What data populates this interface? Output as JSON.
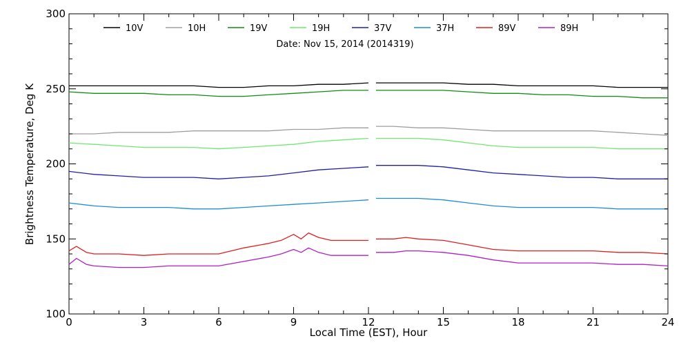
{
  "chart_data": {
    "type": "line",
    "title": "",
    "subtitle": "Date: Nov 15, 2014 (2014319)",
    "xlabel": "Local Time (EST), Hour",
    "ylabel": "Brightness Temperature, Deg K",
    "xlim": [
      0,
      24
    ],
    "ylim": [
      100,
      300
    ],
    "xticks": [
      "0",
      "3",
      "6",
      "9",
      "12",
      "15",
      "18",
      "21",
      "24"
    ],
    "yticks": [
      "100",
      "150",
      "200",
      "250",
      "300"
    ],
    "x_gap": [
      12,
      12.3
    ],
    "grid": false,
    "legend_position": "top",
    "series": [
      {
        "name": "10V",
        "color": "#000000",
        "x": [
          0,
          1,
          2,
          3,
          4,
          5,
          6,
          7,
          8,
          9,
          10,
          11,
          12,
          12.3,
          13,
          14,
          15,
          16,
          17,
          18,
          19,
          20,
          21,
          22,
          23,
          24
        ],
        "y": [
          252,
          252,
          252,
          252,
          252,
          252,
          251,
          251,
          252,
          252,
          253,
          253,
          254,
          254,
          254,
          254,
          254,
          253,
          253,
          252,
          252,
          252,
          252,
          251,
          251,
          251
        ]
      },
      {
        "name": "10H",
        "color": "#9e9e9e",
        "x": [
          0,
          1,
          2,
          3,
          4,
          5,
          6,
          7,
          8,
          9,
          10,
          11,
          12,
          12.3,
          13,
          14,
          15,
          16,
          17,
          18,
          19,
          20,
          21,
          22,
          23,
          24
        ],
        "y": [
          220,
          220,
          221,
          221,
          221,
          222,
          222,
          222,
          222,
          223,
          223,
          224,
          224,
          225,
          225,
          224,
          224,
          223,
          222,
          222,
          222,
          222,
          222,
          221,
          220,
          219
        ]
      },
      {
        "name": "19V",
        "color": "#108c10",
        "x": [
          0,
          1,
          2,
          3,
          4,
          5,
          6,
          7,
          8,
          9,
          10,
          11,
          12,
          12.3,
          13,
          14,
          15,
          16,
          17,
          18,
          19,
          20,
          21,
          22,
          23,
          24
        ],
        "y": [
          248,
          247,
          247,
          247,
          246,
          246,
          245,
          245,
          246,
          247,
          248,
          249,
          249,
          249,
          249,
          249,
          249,
          248,
          247,
          247,
          246,
          246,
          245,
          245,
          244,
          244
        ]
      },
      {
        "name": "19H",
        "color": "#6fe86f",
        "x": [
          0,
          1,
          2,
          3,
          4,
          5,
          6,
          7,
          8,
          9,
          10,
          11,
          12,
          12.3,
          13,
          14,
          15,
          16,
          17,
          18,
          19,
          20,
          21,
          22,
          23,
          24
        ],
        "y": [
          214,
          213,
          212,
          211,
          211,
          211,
          210,
          211,
          212,
          213,
          215,
          216,
          217,
          217,
          217,
          217,
          216,
          214,
          212,
          211,
          211,
          211,
          211,
          210,
          210,
          210
        ]
      },
      {
        "name": "37V",
        "color": "#1e1ea8",
        "x": [
          0,
          1,
          2,
          3,
          4,
          5,
          6,
          7,
          8,
          9,
          10,
          11,
          12,
          12.3,
          13,
          14,
          15,
          16,
          17,
          18,
          19,
          20,
          21,
          22,
          23,
          24
        ],
        "y": [
          195,
          193,
          192,
          191,
          191,
          191,
          190,
          191,
          192,
          194,
          196,
          197,
          198,
          199,
          199,
          199,
          198,
          196,
          194,
          193,
          192,
          191,
          191,
          190,
          190,
          190
        ]
      },
      {
        "name": "37H",
        "color": "#1c8cd8",
        "x": [
          0,
          1,
          2,
          3,
          4,
          5,
          6,
          7,
          8,
          9,
          10,
          11,
          12,
          12.3,
          13,
          14,
          15,
          16,
          17,
          18,
          19,
          20,
          21,
          22,
          23,
          24
        ],
        "y": [
          174,
          172,
          171,
          171,
          171,
          170,
          170,
          171,
          172,
          173,
          174,
          175,
          176,
          177,
          177,
          177,
          176,
          174,
          172,
          171,
          171,
          171,
          171,
          170,
          170,
          170
        ]
      },
      {
        "name": "89V",
        "color": "#e01e1e",
        "x": [
          0,
          0.3,
          0.7,
          1,
          2,
          3,
          4,
          5,
          6,
          7,
          8,
          8.5,
          9,
          9.3,
          9.6,
          10,
          10.5,
          11,
          12,
          12.3,
          13,
          13.5,
          14,
          15,
          16,
          17,
          18,
          19,
          20,
          21,
          22,
          23,
          24
        ],
        "y": [
          142,
          145,
          141,
          140,
          140,
          139,
          140,
          140,
          140,
          144,
          147,
          149,
          153,
          150,
          154,
          151,
          149,
          149,
          149,
          150,
          150,
          151,
          150,
          149,
          146,
          143,
          142,
          142,
          142,
          142,
          141,
          141,
          140
        ]
      },
      {
        "name": "89H",
        "color": "#b01ec8",
        "x": [
          0,
          0.3,
          0.7,
          1,
          2,
          3,
          4,
          5,
          6,
          7,
          8,
          8.5,
          9,
          9.3,
          9.6,
          10,
          10.5,
          11,
          12,
          12.3,
          13,
          13.5,
          14,
          15,
          16,
          17,
          18,
          19,
          20,
          21,
          22,
          23,
          24
        ],
        "y": [
          133,
          137,
          133,
          132,
          131,
          131,
          132,
          132,
          132,
          135,
          138,
          140,
          143,
          141,
          144,
          141,
          139,
          139,
          139,
          141,
          141,
          142,
          142,
          141,
          139,
          136,
          134,
          134,
          134,
          134,
          133,
          133,
          132
        ]
      }
    ]
  }
}
